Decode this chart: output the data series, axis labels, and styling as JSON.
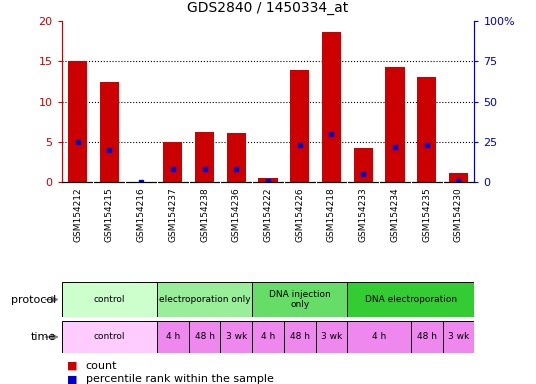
{
  "title": "GDS2840 / 1450334_at",
  "samples": [
    "GSM154212",
    "GSM154215",
    "GSM154216",
    "GSM154237",
    "GSM154238",
    "GSM154236",
    "GSM154222",
    "GSM154226",
    "GSM154218",
    "GSM154233",
    "GSM154234",
    "GSM154235",
    "GSM154230"
  ],
  "count_values": [
    15.0,
    12.4,
    0.1,
    5.0,
    6.2,
    6.1,
    0.6,
    14.0,
    18.7,
    4.3,
    14.3,
    13.1,
    1.2
  ],
  "percentile_values": [
    25,
    20,
    0.5,
    8,
    8,
    8,
    1,
    23,
    30,
    5,
    22,
    23,
    1
  ],
  "ylim_left": [
    0,
    20
  ],
  "ylim_right": [
    0,
    100
  ],
  "yticks_left": [
    0,
    5,
    10,
    15,
    20
  ],
  "yticks_right": [
    0,
    25,
    50,
    75,
    100
  ],
  "protocol_groups": [
    {
      "label": "control",
      "start": 0,
      "end": 3,
      "color": "#ccffcc"
    },
    {
      "label": "electroporation only",
      "start": 3,
      "end": 6,
      "color": "#99ee99"
    },
    {
      "label": "DNA injection\nonly",
      "start": 6,
      "end": 9,
      "color": "#66dd66"
    },
    {
      "label": "DNA electroporation",
      "start": 9,
      "end": 13,
      "color": "#33cc33"
    }
  ],
  "time_groups": [
    {
      "label": "control",
      "start": 0,
      "end": 3,
      "color": "#ffccff"
    },
    {
      "label": "4 h",
      "start": 3,
      "end": 4,
      "color": "#ee88ee"
    },
    {
      "label": "48 h",
      "start": 4,
      "end": 5,
      "color": "#ee88ee"
    },
    {
      "label": "3 wk",
      "start": 5,
      "end": 6,
      "color": "#ee88ee"
    },
    {
      "label": "4 h",
      "start": 6,
      "end": 7,
      "color": "#ee88ee"
    },
    {
      "label": "48 h",
      "start": 7,
      "end": 8,
      "color": "#ee88ee"
    },
    {
      "label": "3 wk",
      "start": 8,
      "end": 9,
      "color": "#ee88ee"
    },
    {
      "label": "4 h",
      "start": 9,
      "end": 11,
      "color": "#ee88ee"
    },
    {
      "label": "48 h",
      "start": 11,
      "end": 12,
      "color": "#ee88ee"
    },
    {
      "label": "3 wk",
      "start": 12,
      "end": 13,
      "color": "#ee88ee"
    }
  ],
  "bar_color": "#cc0000",
  "percentile_color": "#0000cc",
  "grid_color": "#000000",
  "left_axis_color": "#cc0000",
  "right_axis_color": "#0000cc",
  "sample_bg_color": "#cccccc",
  "bg_color": "#ffffff",
  "label_fontsize": 6.5,
  "title_fontsize": 10
}
